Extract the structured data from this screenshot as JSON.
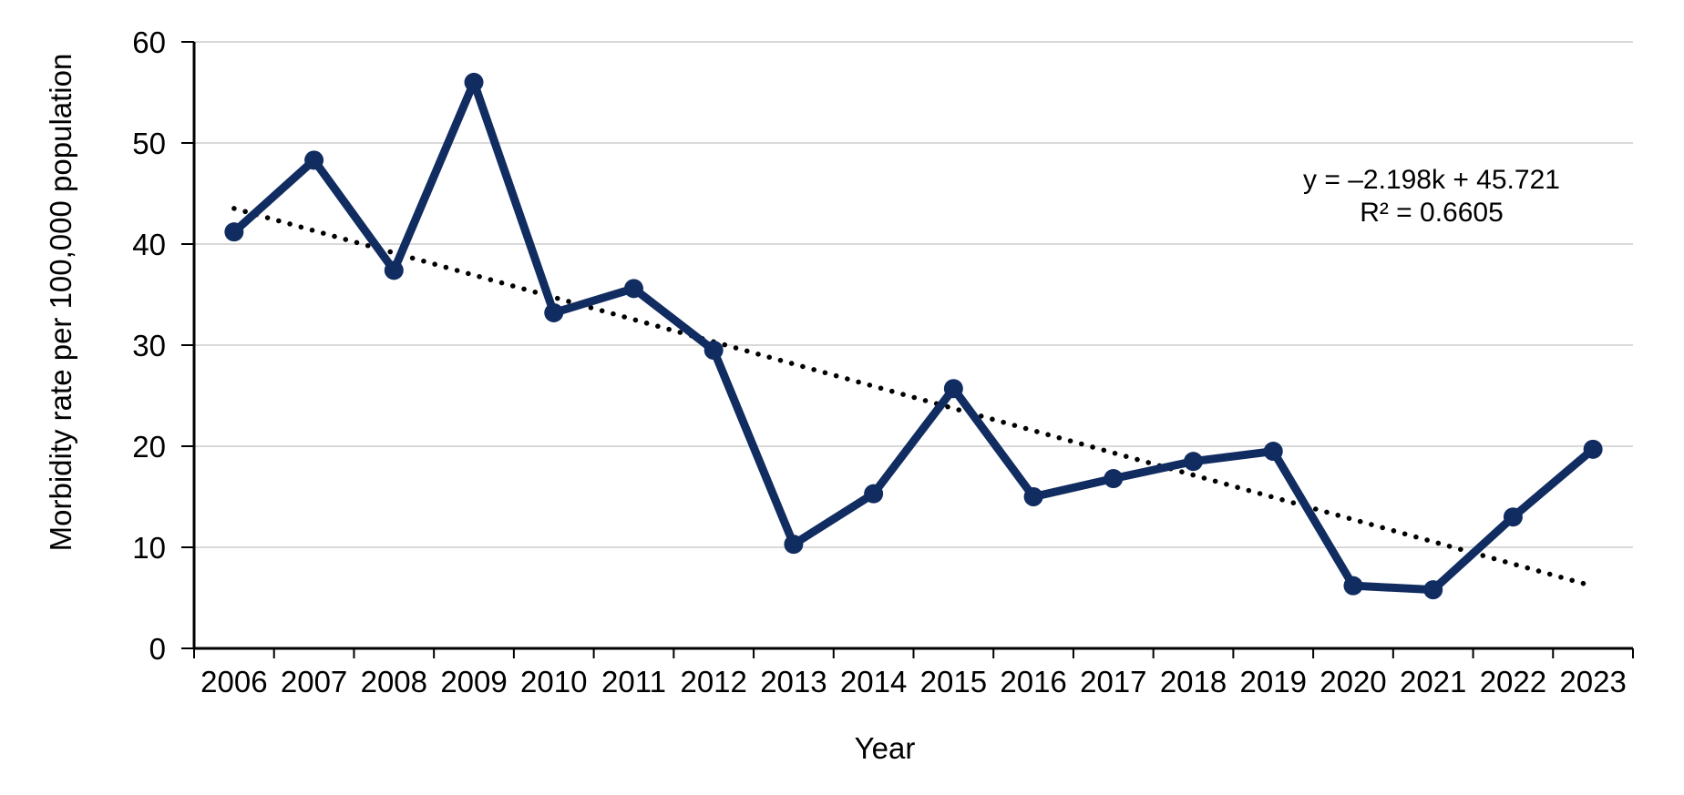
{
  "chart_data": {
    "type": "line",
    "xlabel": "Year",
    "ylabel": "Morbidity rate per 100,000 population",
    "categories": [
      "2006",
      "2007",
      "2008",
      "2009",
      "2010",
      "2011",
      "2012",
      "2013",
      "2014",
      "2015",
      "2016",
      "2017",
      "2018",
      "2019",
      "2020",
      "2021",
      "2022",
      "2023"
    ],
    "series": [
      {
        "values": [
          41.2,
          48.3,
          37.4,
          56.0,
          33.2,
          35.6,
          29.5,
          10.3,
          15.3,
          25.7,
          15.0,
          16.8,
          18.5,
          19.5,
          6.2,
          5.8,
          13.0,
          19.7
        ]
      }
    ],
    "ylim": [
      0,
      60
    ],
    "yticks": [
      0,
      10,
      20,
      30,
      40,
      50,
      60
    ],
    "grid": "horizontal",
    "legend": "none",
    "marker": "circle",
    "trendline": {
      "type": "linear",
      "slope": -2.198,
      "intercept": 45.721,
      "r2": 0.6605,
      "k_range": [
        1,
        18
      ],
      "style": "dotted",
      "equation_label": "y = –2.198k + 45.721",
      "r2_label": "R² = 0.6605"
    }
  },
  "colors": {
    "series": "#112c60",
    "trendline": "#000000",
    "gridline": "#d9d9d9",
    "axis": "#000000",
    "text": "#000000",
    "background": "#ffffff"
  }
}
